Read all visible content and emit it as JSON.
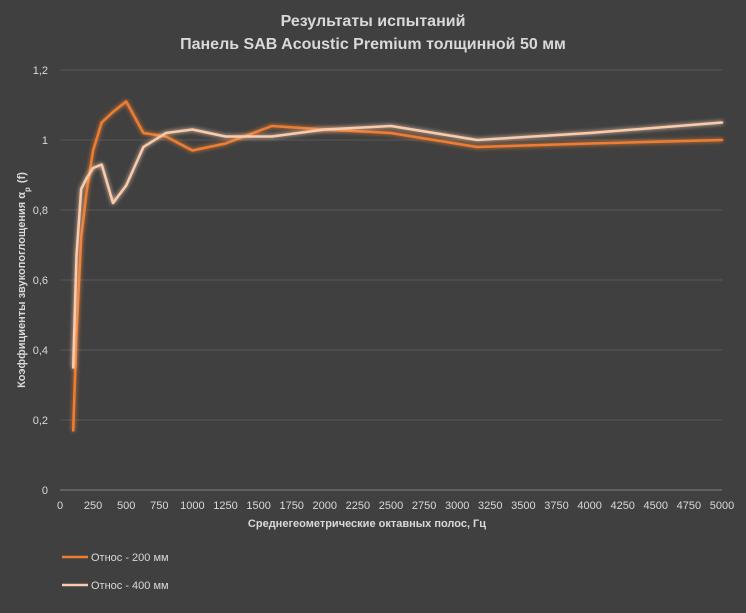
{
  "chart_data": {
    "type": "line",
    "title": [
      "Результаты испытаний",
      "Панель SAB Acoustic Premium толщинной 50 мм"
    ],
    "xlabel": "Среднегеометрические октавных полос, Гц",
    "ylabel_prefix": "Коэффициенты звукопоглощения α",
    "ylabel_subscript": "p",
    "ylabel_suffix": "(f)",
    "xlim": [
      0,
      5000
    ],
    "ylim": [
      0,
      1.2
    ],
    "x_ticks": [
      0,
      250,
      500,
      750,
      1000,
      1250,
      1500,
      1750,
      2000,
      2250,
      2500,
      2750,
      3000,
      3250,
      3500,
      3750,
      4000,
      4250,
      4500,
      4750,
      5000
    ],
    "y_ticks": [
      0,
      0.2,
      0.4,
      0.6,
      0.8,
      1,
      1.2
    ],
    "y_tick_labels": [
      "0",
      "0,2",
      "0,4",
      "0,6",
      "0,8",
      "1",
      "1,2"
    ],
    "grid": "horizontal",
    "legend_position": "bottom-left",
    "series": [
      {
        "name": "Относ - 200 мм",
        "color": "#ed7d31",
        "x": [
          100,
          125,
          160,
          200,
          250,
          315,
          400,
          500,
          630,
          800,
          1000,
          1250,
          1600,
          2000,
          2500,
          3150,
          4000,
          5000
        ],
        "y": [
          0.17,
          0.45,
          0.72,
          0.85,
          0.97,
          1.05,
          1.08,
          1.11,
          1.02,
          1.01,
          0.97,
          0.99,
          1.04,
          1.03,
          1.02,
          0.98,
          0.99,
          1.0
        ]
      },
      {
        "name": "Относ - 400 мм",
        "color": "#f8cbad",
        "x": [
          100,
          125,
          160,
          200,
          250,
          315,
          400,
          500,
          630,
          800,
          1000,
          1250,
          1600,
          2000,
          2500,
          3150,
          4000,
          5000
        ],
        "y": [
          0.35,
          0.67,
          0.86,
          0.89,
          0.92,
          0.93,
          0.82,
          0.87,
          0.98,
          1.02,
          1.03,
          1.01,
          1.01,
          1.03,
          1.04,
          1.0,
          1.02,
          1.05
        ]
      }
    ]
  }
}
